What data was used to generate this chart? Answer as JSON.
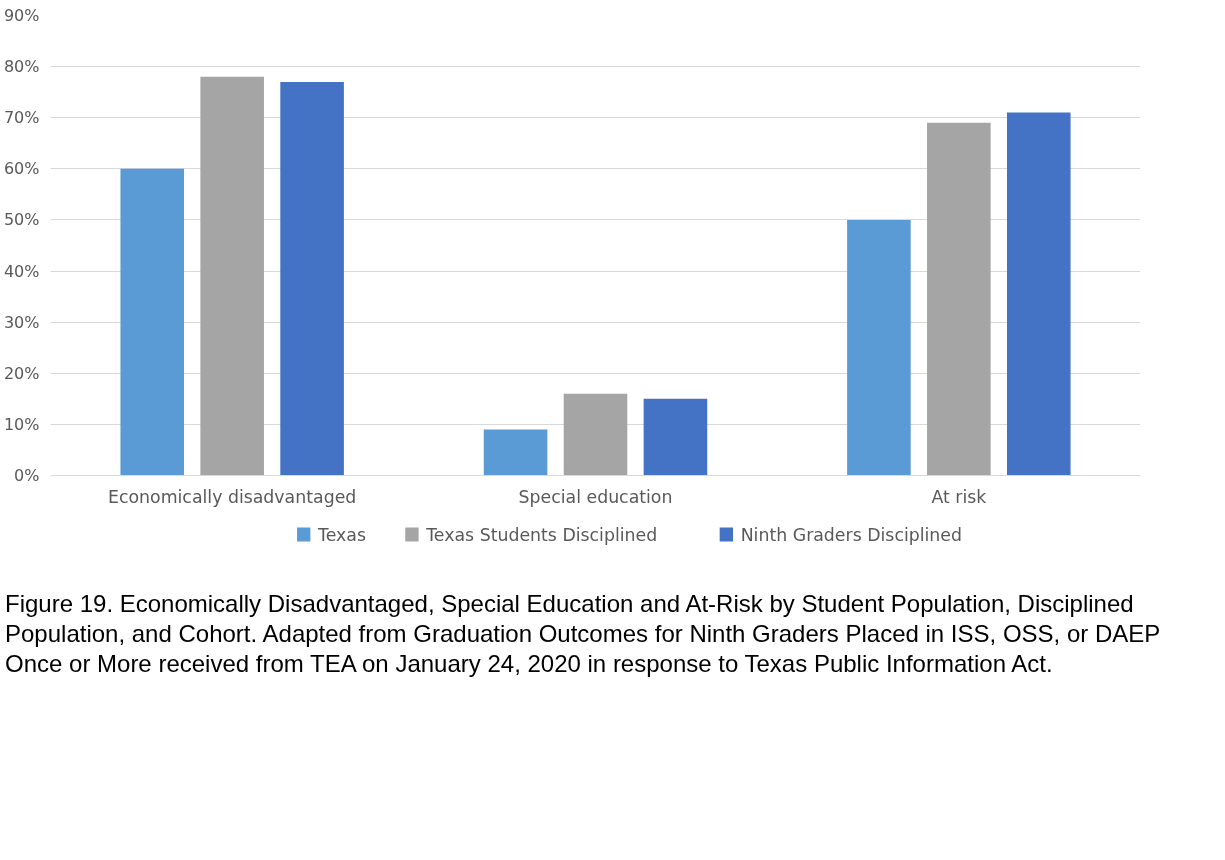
{
  "chart_data": {
    "type": "bar",
    "categories": [
      "Economically disadvantaged",
      "Special education",
      "At risk"
    ],
    "series": [
      {
        "name": "Texas",
        "color": "#5b9bd5",
        "values": [
          60,
          9,
          50
        ]
      },
      {
        "name": "Texas Students Disciplined",
        "color": "#a5a5a5",
        "values": [
          78,
          16,
          69
        ]
      },
      {
        "name": "Ninth Graders Disciplined",
        "color": "#4472c4",
        "values": [
          77,
          15,
          71
        ]
      }
    ],
    "ylim": [
      0,
      90
    ],
    "yticks": [
      {
        "value": 0,
        "label": "0%"
      },
      {
        "value": 10,
        "label": "10%"
      },
      {
        "value": 20,
        "label": "20%"
      },
      {
        "value": 30,
        "label": "30%"
      },
      {
        "value": 40,
        "label": "40%"
      },
      {
        "value": 50,
        "label": "50%"
      },
      {
        "value": 60,
        "label": "60%"
      },
      {
        "value": 70,
        "label": "70%"
      },
      {
        "value": 80,
        "label": "80%"
      },
      {
        "value": 90,
        "label": "90%"
      }
    ],
    "grid": "y",
    "legend": "bottom",
    "annotations": [
      "Figure 19.  Economically Disadvantaged, Special Education and At-Risk by Student Population, Disciplined Population, and Cohort.  Adapted from Graduation Outcomes for Ninth Graders Placed in ISS, OSS, or DAEP Once or More received from TEA on January 24, 2020 in response to Texas Public Information Act."
    ]
  }
}
